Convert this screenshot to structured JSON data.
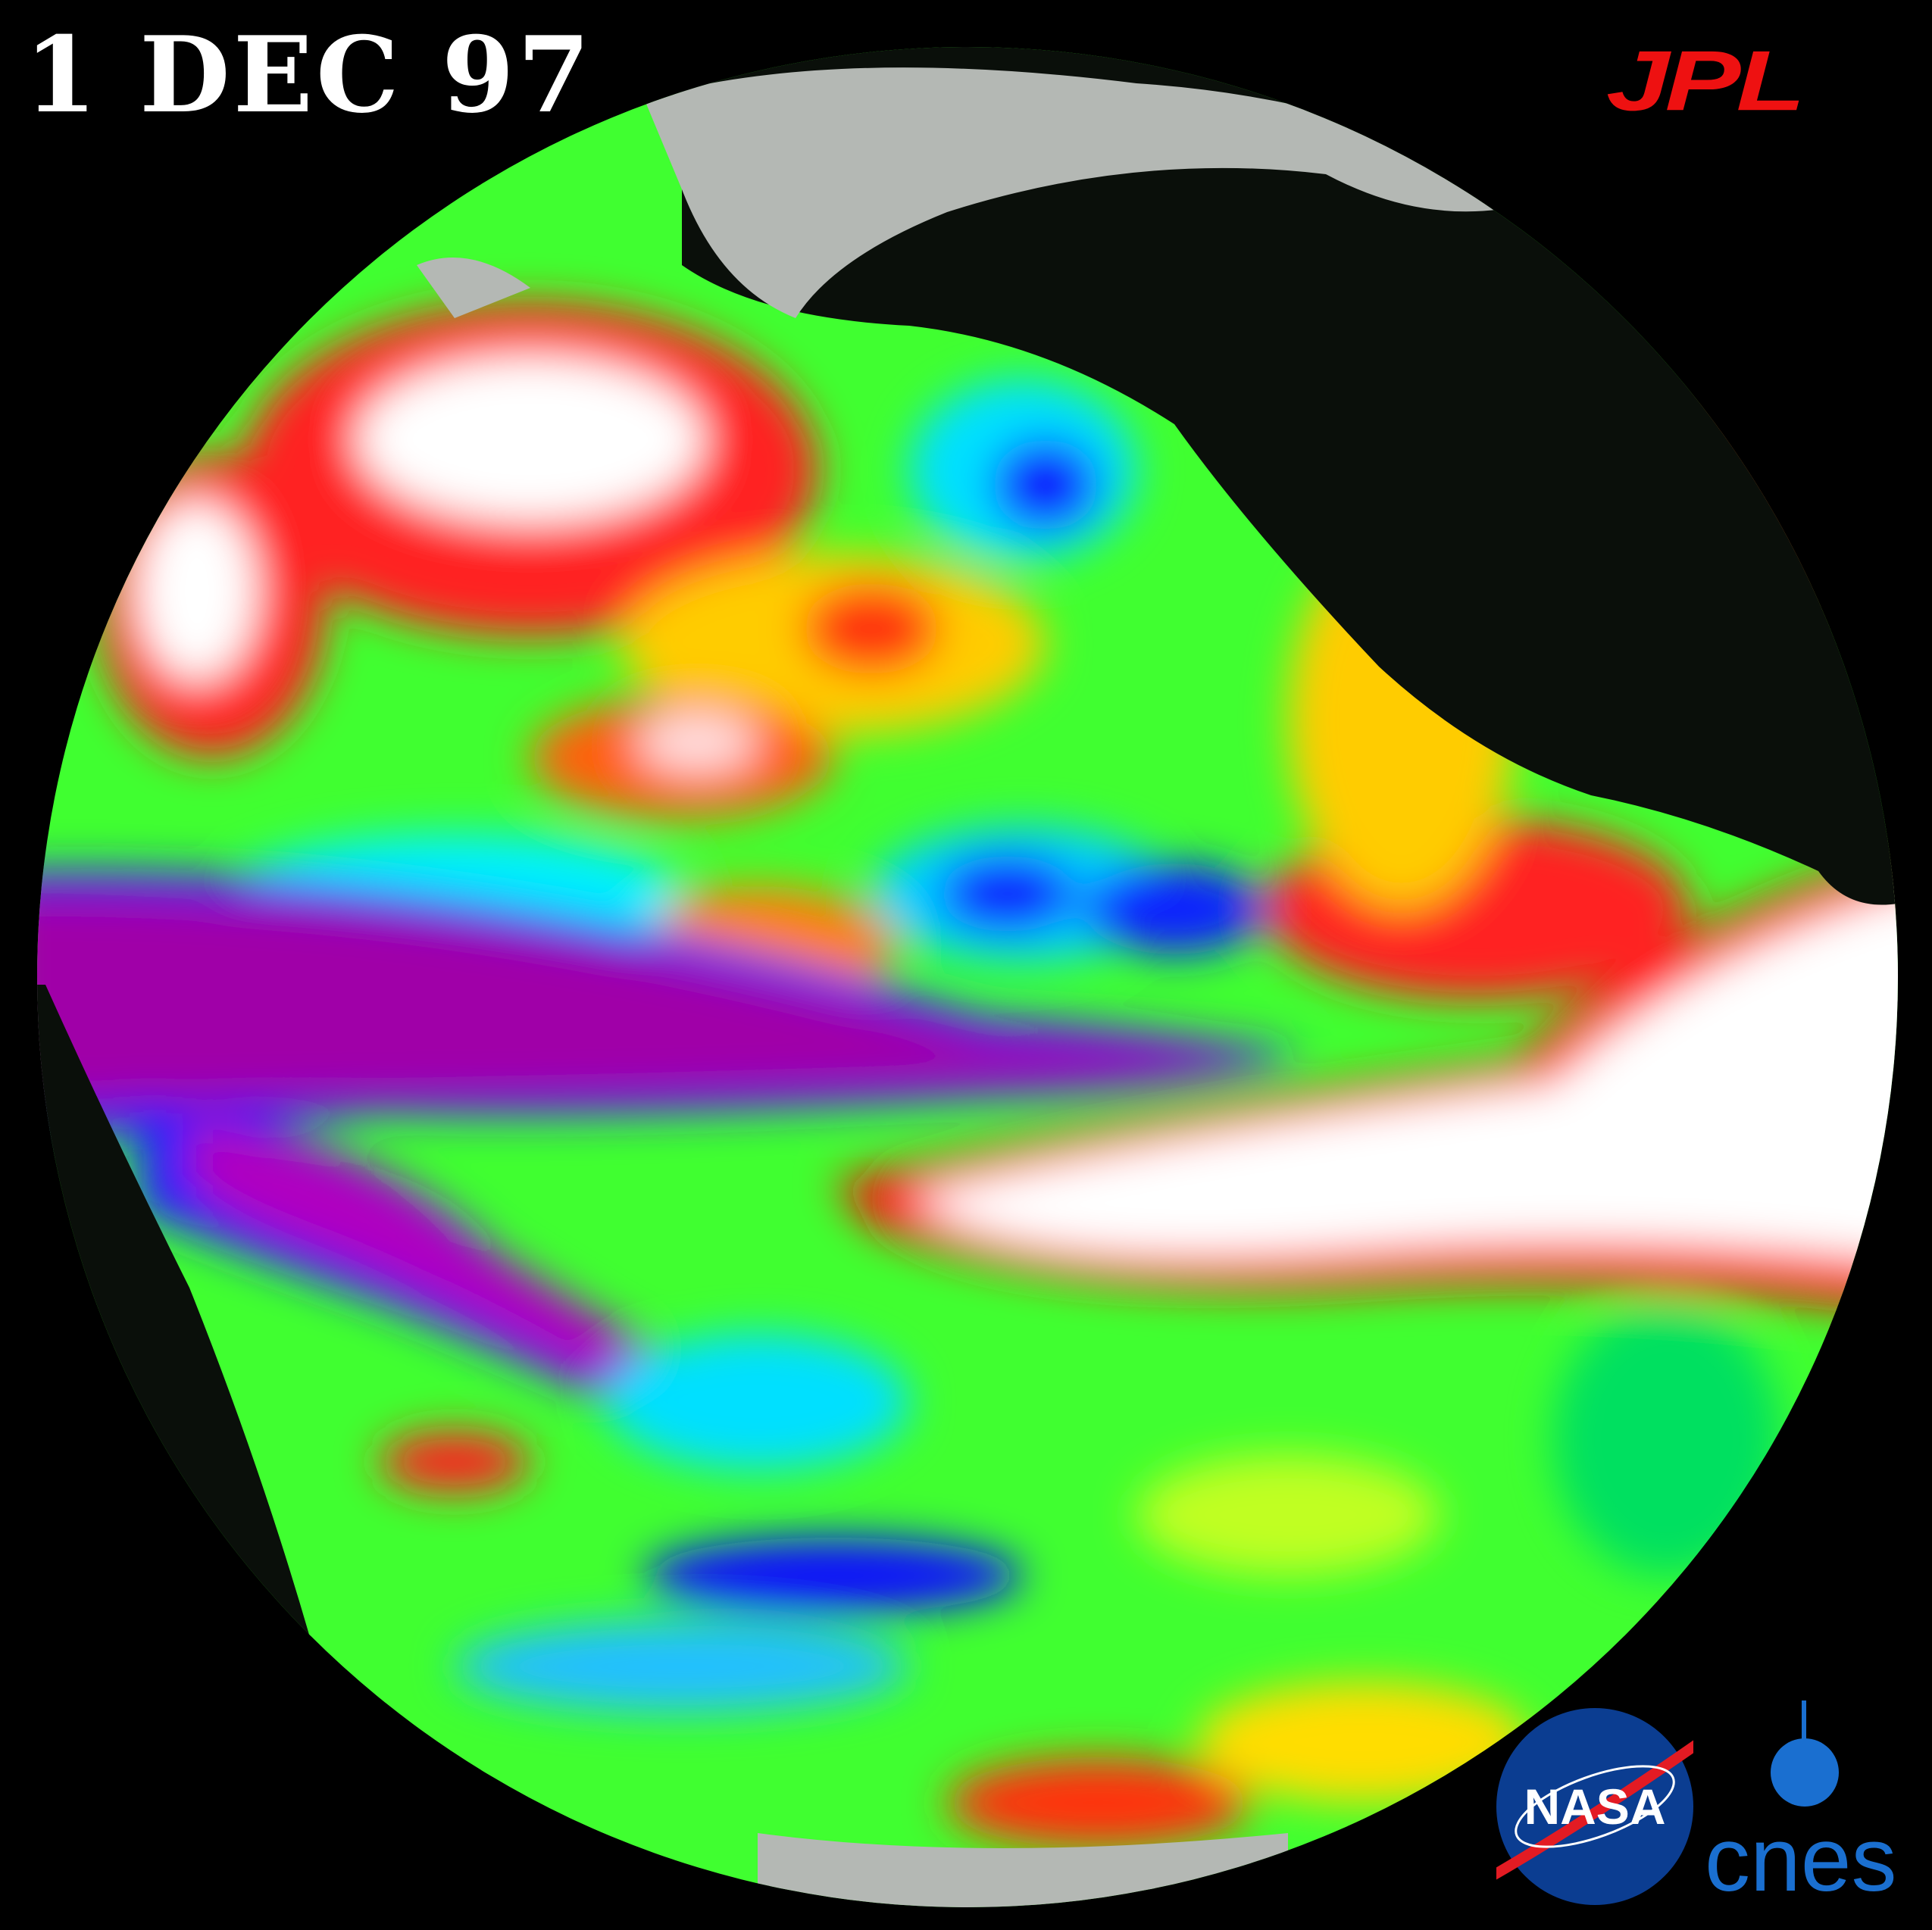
{
  "header": {
    "date": "1 DEC 97"
  },
  "logos": {
    "jpl": "JPL",
    "nasa": "NASA",
    "cnes": "cnes"
  },
  "colors": {
    "background": "#000000",
    "land": "#0a0f0a",
    "ice": "#b4b8b4",
    "very_high": "#ffffff",
    "high": "#ff1010",
    "above": "#ffff00",
    "normal": "#00ff00",
    "below": "#00ffff",
    "low": "#0000ff",
    "very_low": "#a000a0",
    "jpl_red": "#ee1111",
    "nasa_blue": "#0b3d91",
    "cnes_blue": "#1a6fd0"
  }
}
